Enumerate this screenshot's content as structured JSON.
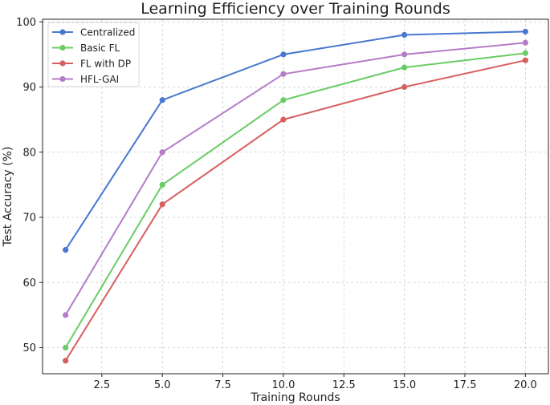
{
  "chart_data": {
    "type": "line",
    "title": "Learning Efficiency over Training Rounds",
    "xlabel": "Training Rounds",
    "ylabel": "Test Accuracy (%)",
    "x": [
      1,
      5,
      10,
      15,
      20
    ],
    "xlim": [
      0.05,
      20.95
    ],
    "ylim": [
      46.0,
      100.4
    ],
    "xticks": [
      2.5,
      5.0,
      7.5,
      10.0,
      12.5,
      15.0,
      17.5,
      20.0
    ],
    "xtick_labels": [
      "2.5",
      "5.0",
      "7.5",
      "10.0",
      "12.5",
      "15.0",
      "17.5",
      "20.0"
    ],
    "yticks": [
      50,
      60,
      70,
      80,
      90,
      100
    ],
    "ytick_labels": [
      "50",
      "60",
      "70",
      "80",
      "90",
      "100"
    ],
    "grid": true,
    "legend_position": "top-left",
    "series": [
      {
        "name": "Centralized",
        "color": "#4878d0",
        "values": [
          65,
          88,
          95,
          98,
          98.5
        ]
      },
      {
        "name": "Basic FL",
        "color": "#6acc64",
        "values": [
          50,
          75,
          88,
          93,
          95.2
        ]
      },
      {
        "name": "FL with DP",
        "color": "#d65f5f",
        "values": [
          48,
          72,
          85,
          90,
          94.1
        ]
      },
      {
        "name": "HFL-GAI",
        "color": "#b47cc7",
        "values": [
          55,
          80,
          92,
          95,
          96.8
        ]
      }
    ]
  }
}
